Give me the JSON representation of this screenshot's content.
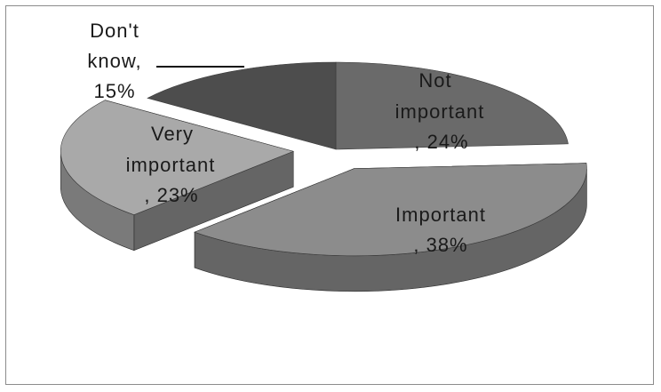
{
  "chart_data": {
    "type": "pie",
    "title": "",
    "style": "3d-exploded",
    "legend": "none",
    "slices": [
      {
        "label_lines": [
          "Not",
          "important",
          ", 24%"
        ],
        "category": "Not important",
        "value": 24,
        "color": "#6a6a6a"
      },
      {
        "label_lines": [
          "Important",
          ", 38%"
        ],
        "category": "Important",
        "value": 38,
        "color": "#8c8c8c"
      },
      {
        "label_lines": [
          "Very",
          "important",
          ", 23%"
        ],
        "category": "Very important",
        "value": 23,
        "color": "#a9a9a9"
      },
      {
        "label_lines": [
          "Don't",
          "know,",
          "15%"
        ],
        "category": "Don't know",
        "value": 15,
        "color": "#4d4d4d"
      }
    ]
  }
}
